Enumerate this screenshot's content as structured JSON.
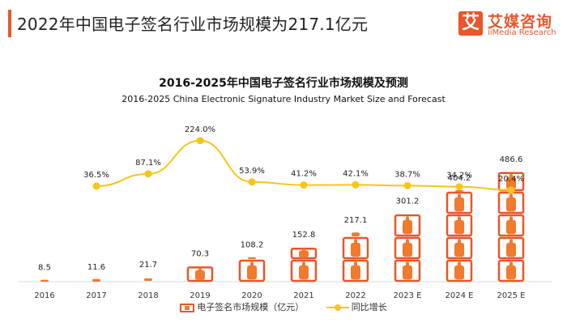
{
  "header": {
    "title": "2022年中国电子签名行业市场规模为217.1亿元"
  },
  "logo": {
    "mark": "艾",
    "cn": "艾媒咨询",
    "en": "iiMedia Research"
  },
  "colors": {
    "accent": "#e8562a",
    "bar_fill": "#f07a2e",
    "line": "#f5c518"
  },
  "chart_data": {
    "type": "bar",
    "title": "2016-2025年中国电子签名行业市场规模及预测",
    "subtitle": "2016-2025 China Electronic Signature Industry Market Size and Forecast",
    "categories": [
      "2016",
      "2017",
      "2018",
      "2019",
      "2020",
      "2021",
      "2022",
      "2023 E",
      "2024 E",
      "2025 E"
    ],
    "series": [
      {
        "name": "电子签名市场规模（亿元）",
        "type": "bar",
        "values": [
          8.5,
          11.6,
          21.7,
          70.3,
          108.2,
          152.8,
          217.1,
          301.2,
          404.2,
          486.6
        ],
        "labels": [
          "8.5",
          "11.6",
          "21.7",
          "70.3",
          "108.2",
          "152.8",
          "217.1",
          "301.2",
          "404.2",
          "486.6"
        ]
      },
      {
        "name": "同比增长",
        "type": "line",
        "values": [
          null,
          36.5,
          87.1,
          224.0,
          53.9,
          41.2,
          42.1,
          38.7,
          34.2,
          20.4
        ],
        "labels": [
          "",
          "36.5%",
          "87.1%",
          "224.0%",
          "53.9%",
          "41.2%",
          "42.1%",
          "38.7%",
          "34.2%",
          "20.4%"
        ]
      }
    ],
    "legend": "bottom-center"
  }
}
